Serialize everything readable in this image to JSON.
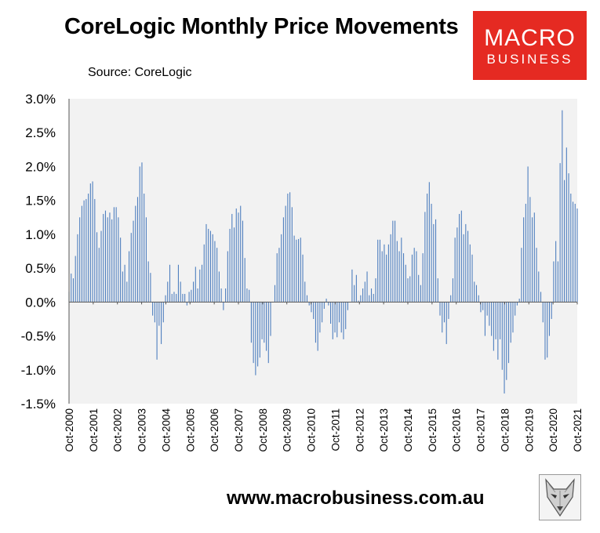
{
  "header": {
    "title": "CoreLogic Monthly Price Movements",
    "source": "Source: CoreLogic"
  },
  "logo": {
    "line1": "MACRO",
    "line2": "BUSINESS",
    "color": "#e52a22"
  },
  "footer": {
    "url": "www.macrobusiness.com.au"
  },
  "chart_data": {
    "type": "bar",
    "title": "CoreLogic Monthly Price Movements",
    "bar_color": "#4f7fbf",
    "plot_background": "#f2f2f2",
    "grid": false,
    "ylim": [
      -1.5,
      3.0
    ],
    "y_ticks": [
      "3.0%",
      "2.5%",
      "2.0%",
      "1.5%",
      "1.0%",
      "0.5%",
      "0.0%",
      "-0.5%",
      "-1.0%",
      "-1.5%"
    ],
    "x_tick_labels": [
      "Oct-2000",
      "Oct-2001",
      "Oct-2002",
      "Oct-2003",
      "Oct-2004",
      "Oct-2005",
      "Oct-2006",
      "Oct-2007",
      "Oct-2008",
      "Oct-2009",
      "Oct-2010",
      "Oct-2011",
      "Oct-2012",
      "Oct-2013",
      "Oct-2014",
      "Oct-2015",
      "Oct-2016",
      "Oct-2017",
      "Oct-2018",
      "Oct-2019",
      "Oct-2020",
      "Oct-2021"
    ],
    "x_start": "Oct-2000",
    "x_end": "Oct-2021",
    "series": [
      {
        "values": [
          0.15,
          0.42,
          0.35,
          0.68,
          1.0,
          1.25,
          1.42,
          1.5,
          1.52,
          1.6,
          1.75,
          1.78,
          1.52,
          1.03,
          0.8,
          1.05,
          1.3,
          1.35,
          1.25,
          1.32,
          1.22,
          1.4,
          1.4,
          1.25,
          0.95,
          0.45,
          0.55,
          0.3,
          0.75,
          1.02,
          1.2,
          1.42,
          1.55,
          2.0,
          2.06,
          1.6,
          1.25,
          0.6,
          0.43,
          -0.2,
          -0.3,
          -0.85,
          -0.35,
          -0.62,
          -0.3,
          0.1,
          0.3,
          0.55,
          0.12,
          0.15,
          0.12,
          0.55,
          0.3,
          0.12,
          0.12,
          -0.05,
          0.15,
          0.18,
          0.3,
          0.52,
          0.2,
          0.48,
          0.55,
          0.85,
          1.15,
          1.08,
          1.05,
          1.0,
          0.9,
          0.8,
          0.45,
          0.2,
          -0.12,
          0.2,
          0.75,
          1.08,
          1.3,
          1.1,
          1.38,
          1.32,
          1.42,
          1.2,
          0.65,
          0.2,
          0.18,
          -0.6,
          -0.9,
          -1.08,
          -0.95,
          -0.82,
          -0.55,
          -0.6,
          -0.72,
          -0.9,
          -0.5,
          0.0,
          0.25,
          0.72,
          0.8,
          1.0,
          1.25,
          1.42,
          1.6,
          1.62,
          1.4,
          0.98,
          0.92,
          0.93,
          0.95,
          0.7,
          0.3,
          0.1,
          -0.05,
          -0.15,
          -0.25,
          -0.6,
          -0.72,
          -0.45,
          -0.3,
          -0.1,
          0.05,
          -0.05,
          -0.32,
          -0.55,
          -0.45,
          -0.52,
          -0.3,
          -0.45,
          -0.55,
          -0.4,
          -0.12,
          0.0,
          0.48,
          0.25,
          0.4,
          0.02,
          0.1,
          0.2,
          0.3,
          0.45,
          0.1,
          0.2,
          0.12,
          0.35,
          0.92,
          0.92,
          0.75,
          0.85,
          0.7,
          0.85,
          1.0,
          1.2,
          1.2,
          0.9,
          0.75,
          0.95,
          0.72,
          0.55,
          0.35,
          0.38,
          0.7,
          0.8,
          0.75,
          0.4,
          0.25,
          0.72,
          1.33,
          1.6,
          1.77,
          1.45,
          1.15,
          1.22,
          0.35,
          -0.2,
          -0.45,
          -0.3,
          -0.62,
          -0.25,
          0.1,
          0.35,
          0.95,
          1.1,
          1.3,
          1.35,
          1.0,
          1.15,
          1.05,
          0.85,
          0.7,
          0.3,
          0.25,
          0.1,
          -0.15,
          -0.12,
          -0.5,
          -0.2,
          -0.35,
          -0.5,
          -0.72,
          -0.55,
          -0.85,
          -0.55,
          -1.0,
          -1.35,
          -1.15,
          -0.9,
          -0.6,
          -0.45,
          -0.2,
          -0.05,
          0.05,
          0.8,
          1.25,
          1.45,
          2.0,
          1.55,
          1.25,
          1.32,
          0.8,
          0.45,
          0.15,
          -0.3,
          -0.85,
          -0.82,
          -0.5,
          -0.25,
          0.6,
          0.9,
          0.6,
          2.05,
          2.83,
          1.8,
          2.28,
          1.9,
          1.6,
          1.48,
          1.45,
          1.38
        ]
      }
    ]
  }
}
